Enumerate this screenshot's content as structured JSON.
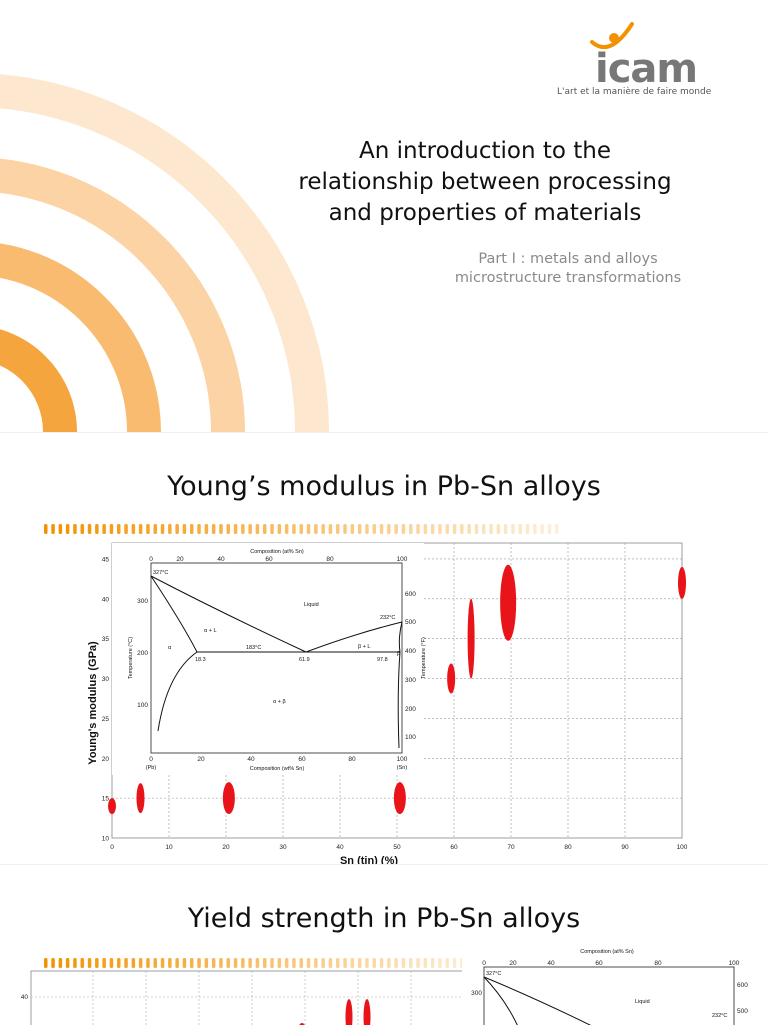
{
  "slide1": {
    "logo_text": "icam",
    "logo_tagline": "L'art et la manière de faire monde",
    "title_lines": [
      "An introduction to the",
      "relationship between processing",
      "and properties of materials"
    ],
    "subtitle_lines": [
      "Part I : metals and alloys",
      "microstructure transformations"
    ]
  },
  "slide2": {
    "heading": "Young’s modulus in Pb-Sn alloys",
    "inset_diagram": {
      "top_axis_label": "Composition (at% Sn)",
      "bottom_axis_label": "Composition (wt% Sn)",
      "left_axis_label": "Temperature (°C)",
      "right_axis_label": "Temperature (°F)",
      "top_ticks": [
        "0",
        "20",
        "40",
        "60",
        "80",
        "100"
      ],
      "bottom_ticks": [
        "0",
        "20",
        "40",
        "60",
        "80",
        "100"
      ],
      "bottom_end_labels": [
        "(Pb)",
        "(Sn)"
      ],
      "left_ticks": [
        "300",
        "200",
        "100"
      ],
      "right_ticks": [
        "600",
        "500",
        "400",
        "300",
        "200",
        "100"
      ],
      "phase_labels": [
        "Liquid",
        "α + L",
        "α",
        "β + L",
        "α + β",
        "β"
      ],
      "annotations": [
        "327°C",
        "232°C",
        "183°C",
        "18.3",
        "61.9",
        "97.8"
      ]
    }
  },
  "slide3": {
    "heading": "Yield strength in Pb-Sn alloys",
    "partial_axis_tick": "40",
    "inset_diagram": {
      "top_axis_label": "Composition (at% Sn)",
      "top_ticks": [
        "0",
        "20",
        "40",
        "60",
        "80",
        "100"
      ],
      "left_ticks": [
        "300"
      ],
      "right_ticks": [
        "600",
        "500"
      ],
      "annotations": [
        "327°C",
        "232°C"
      ],
      "phase_labels": [
        "Liquid"
      ]
    }
  },
  "chart_data": {
    "type": "scatter",
    "title": "",
    "xlabel": "Sn (tin) (%)",
    "ylabel": "Young's modulus (GPa)",
    "xlim": [
      0,
      100
    ],
    "ylim": [
      10,
      47
    ],
    "x_ticks": [
      0,
      10,
      20,
      30,
      40,
      50,
      60,
      70,
      80,
      90,
      100
    ],
    "y_ticks": [
      10,
      15,
      20,
      25,
      30,
      35,
      40,
      45
    ],
    "grid": true,
    "points": [
      {
        "x": 0,
        "y": 14
      },
      {
        "x": 5,
        "y": 15
      },
      {
        "x": 20.5,
        "y": 15
      },
      {
        "x": 50.5,
        "y": 15
      },
      {
        "x": 59.5,
        "y": 30
      },
      {
        "x": 63,
        "y": 35
      },
      {
        "x": 69.5,
        "y": 39.5
      },
      {
        "x": 100,
        "y": 42
      }
    ],
    "colors": {
      "point": "#e8141a",
      "grid": "#999999"
    }
  }
}
